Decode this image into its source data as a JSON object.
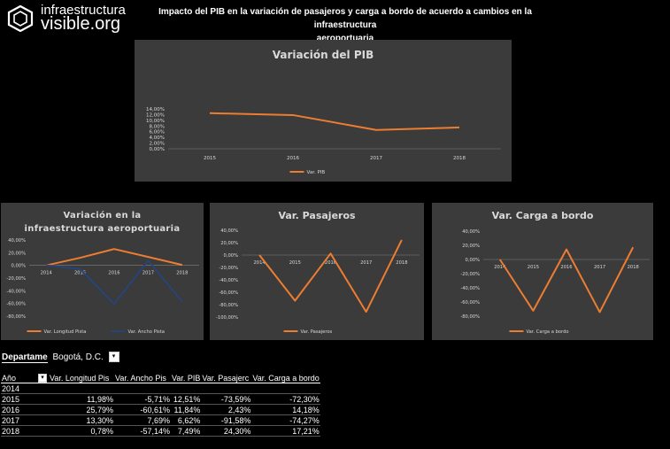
{
  "logo": {
    "line1": "infraestructura",
    "line2": "visible.org"
  },
  "heading": {
    "line1": "Impacto del PIB en la variación de pasajeros y carga a bordo de acuerdo a cambios en la infraestructura",
    "line2": "aeroportuaria"
  },
  "colors": {
    "orange": "#ed7d31",
    "blue": "#264478",
    "panel": "#3b3b3b"
  },
  "chart_data": [
    {
      "id": "pib",
      "type": "line",
      "title": "Variación del PIB",
      "categories": [
        "2015",
        "2016",
        "2017",
        "2018"
      ],
      "yticks": [
        "14,00%",
        "12,00%",
        "10,00%",
        "8,00%",
        "6,00%",
        "4,00%",
        "2,00%",
        "0,00%"
      ],
      "ylim": [
        0,
        14
      ],
      "legend_position": "bottom",
      "series": [
        {
          "name": "Var. PIB",
          "color": "#ed7d31",
          "values": [
            12.51,
            11.84,
            6.62,
            7.49
          ]
        }
      ]
    },
    {
      "id": "infra",
      "type": "line",
      "title": "Variación en la infraestructura aeroportuaria",
      "categories": [
        "2014",
        "2015",
        "2016",
        "2017",
        "2018"
      ],
      "yticks": [
        "40,00%",
        "20,00%",
        "0,00%",
        "-20,00%",
        "-40,00%",
        "-60,00%",
        "-80,00%"
      ],
      "ylim": [
        -80,
        40
      ],
      "legend_position": "bottom",
      "series": [
        {
          "name": "Var. Longitud Pista",
          "color": "#ed7d31",
          "values": [
            0,
            11.98,
            25.79,
            13.3,
            0.78
          ]
        },
        {
          "name": "Var. Ancho Pista",
          "color": "#264478",
          "values": [
            0,
            -5.71,
            -60.61,
            7.69,
            -57.14
          ]
        }
      ]
    },
    {
      "id": "pasajeros",
      "type": "line",
      "title": "Var. Pasajeros",
      "categories": [
        "2014",
        "2015",
        "2016",
        "2017",
        "2018"
      ],
      "yticks": [
        "40,00%",
        "20,00%",
        "0,00%",
        "-20,00%",
        "-40,00%",
        "-60,00%",
        "-80,00%",
        "-100,00%"
      ],
      "ylim": [
        -100,
        40
      ],
      "legend_position": "bottom",
      "series": [
        {
          "name": "Var. Pasajeros",
          "color": "#ed7d31",
          "values": [
            0,
            -73.59,
            2.43,
            -91.58,
            24.3
          ]
        }
      ]
    },
    {
      "id": "carga",
      "type": "line",
      "title": "Var. Carga a bordo",
      "categories": [
        "2014",
        "2015",
        "2016",
        "2017",
        "2018"
      ],
      "yticks": [
        "40,00%",
        "20,00%",
        "0,00%",
        "-20,00%",
        "-40,00%",
        "-60,00%",
        "-80,00%"
      ],
      "ylim": [
        -80,
        40
      ],
      "legend_position": "bottom",
      "series": [
        {
          "name": "Var. Carga a bordo",
          "color": "#ed7d31",
          "values": [
            0,
            -72.3,
            14.18,
            -74.27,
            17.21
          ]
        }
      ]
    }
  ],
  "pivot": {
    "filter_label": "Departame",
    "filter_value": "Bogotá, D.C.",
    "headers": [
      "Año",
      "Var. Longitud Pis",
      "Var. Ancho Pis",
      "Var. PIB",
      "Var. Pasajerc",
      "Var. Carga a bordo"
    ],
    "rows": [
      [
        "2014",
        "",
        "",
        "",
        "",
        ""
      ],
      [
        "2015",
        "11,98%",
        "-5,71%",
        "12,51%",
        "-73,59%",
        "-72,30%"
      ],
      [
        "2016",
        "25,79%",
        "-60,61%",
        "11,84%",
        "2,43%",
        "14,18%"
      ],
      [
        "2017",
        "13,30%",
        "7,69%",
        "6,62%",
        "-91,58%",
        "-74,27%"
      ],
      [
        "2018",
        "0,78%",
        "-57,14%",
        "7,49%",
        "24,30%",
        "17,21%"
      ]
    ]
  }
}
